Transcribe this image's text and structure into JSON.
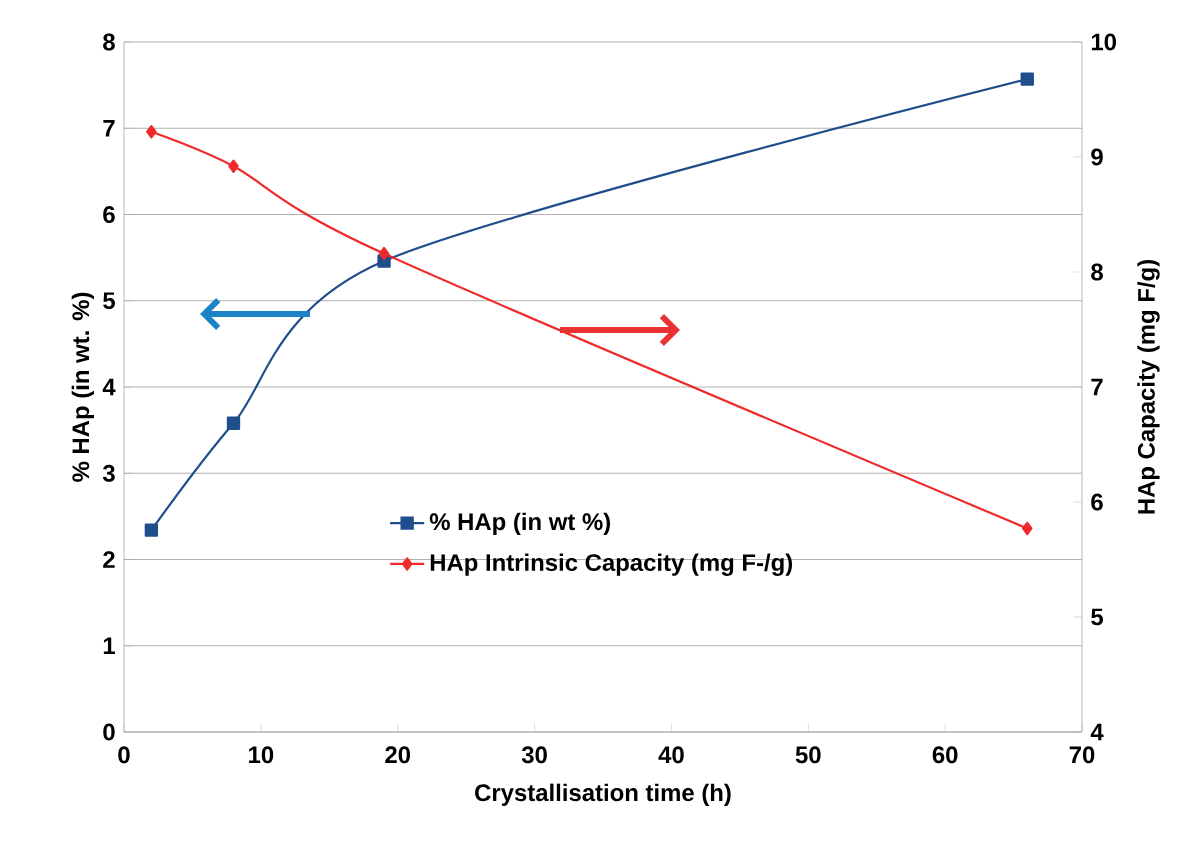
{
  "chart_data": {
    "type": "line",
    "xlabel": "Crystallisation time (h)",
    "ylabel": "% HAp (in wt. %)",
    "y2label": "HAp Capacity (mg F/g)",
    "x": [
      2,
      8,
      19,
      66
    ],
    "series": [
      {
        "name": "% HAp (in wt %)",
        "color": "#1f4e8c",
        "values": [
          2.34,
          3.58,
          5.46,
          7.57
        ],
        "marker": "square"
      },
      {
        "name": "HAp Intrinsic Capacity (mg F-/g)",
        "color": "#ee2a2a",
        "values": [
          9.22,
          8.92,
          8.16,
          5.77
        ],
        "marker": "diamond",
        "axis": "y2"
      }
    ],
    "xlim": [
      0,
      70
    ],
    "xticks": [
      0,
      10,
      20,
      30,
      40,
      50,
      60,
      70
    ],
    "ylim": [
      0,
      8
    ],
    "yticks": [
      0,
      1,
      2,
      3,
      4,
      5,
      6,
      7,
      8
    ],
    "y2lim": [
      4,
      10
    ],
    "y2ticks": [
      4,
      5,
      6,
      7,
      8,
      9,
      10
    ],
    "grid": "y",
    "legend": "bottom"
  }
}
